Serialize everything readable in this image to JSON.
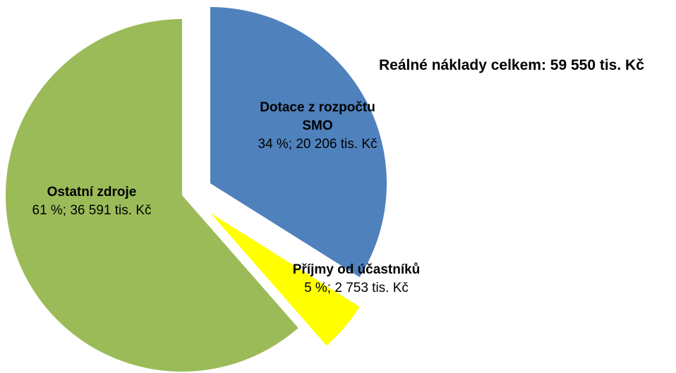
{
  "chart_data": {
    "type": "pie",
    "title": "Reálné náklady celkem: 59 550 tis. Kč",
    "categories": [
      "Dotace z rozpočtu SMO",
      "Příjmy od účastníků",
      "Ostatní zdroje"
    ],
    "values": [
      20206,
      2753,
      36591
    ],
    "value_labels": [
      "34 %; 20 206 tis. Kč",
      "5 %; 2 753 tis. Kč",
      "61 %; 36 591 tis. Kč"
    ],
    "colors": [
      "#4f81bd",
      "#ffff00",
      "#9bbb59"
    ]
  }
}
